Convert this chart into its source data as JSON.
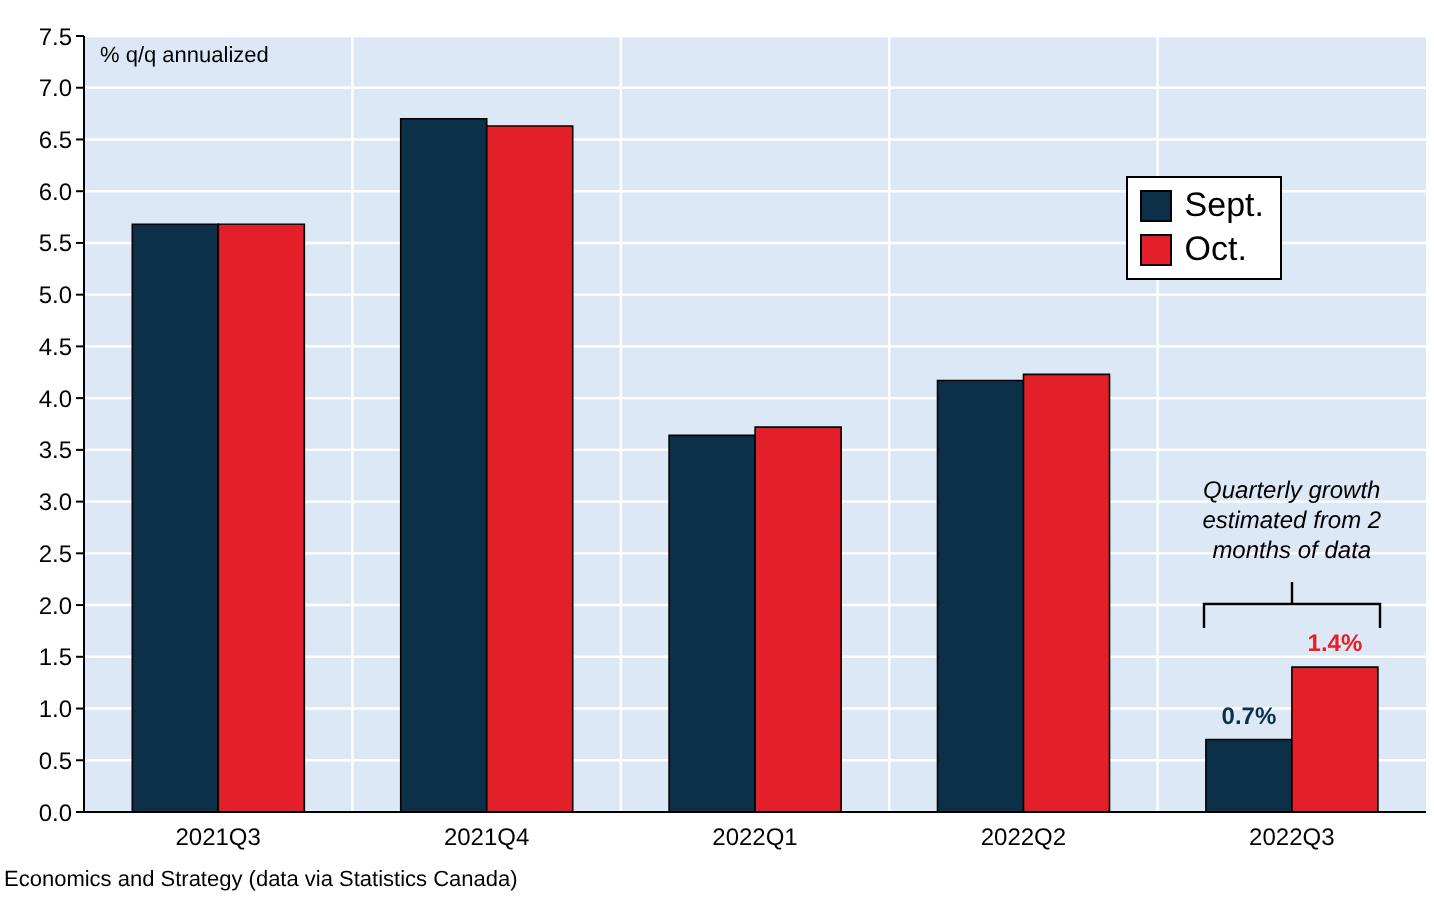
{
  "chart_data": {
    "type": "bar",
    "ylabel": "% q/q annualized",
    "categories": [
      "2021Q3",
      "2021Q4",
      "2022Q1",
      "2022Q2",
      "2022Q3"
    ],
    "series": [
      {
        "name": "Sept.",
        "color": "#0d3049",
        "values": [
          5.68,
          6.7,
          3.64,
          4.17,
          0.7
        ],
        "value_labels": [
          null,
          null,
          null,
          null,
          "0.7%"
        ]
      },
      {
        "name": "Oct.",
        "color": "#e3202a",
        "values": [
          5.68,
          6.63,
          3.72,
          4.23,
          1.4
        ],
        "value_labels": [
          null,
          null,
          null,
          null,
          "1.4%"
        ]
      }
    ],
    "ylim": [
      0,
      7.5
    ],
    "yticks": [
      {
        "value": 0,
        "label": "0.0"
      },
      {
        "value": 0.5,
        "label": "0.5"
      },
      {
        "value": 1,
        "label": "1.0"
      },
      {
        "value": 1.5,
        "label": "1.5"
      },
      {
        "value": 2,
        "label": "2.0"
      },
      {
        "value": 2.5,
        "label": "2.5"
      },
      {
        "value": 3,
        "label": "3.0"
      },
      {
        "value": 3.5,
        "label": "3.5"
      },
      {
        "value": 4,
        "label": "4.0"
      },
      {
        "value": 4.5,
        "label": "4.5"
      },
      {
        "value": 5,
        "label": "5.0"
      },
      {
        "value": 5.5,
        "label": "5.5"
      },
      {
        "value": 6,
        "label": "6.0"
      },
      {
        "value": 6.5,
        "label": "6.5"
      },
      {
        "value": 7,
        "label": "7.0"
      },
      {
        "value": 7.5,
        "label": "7.5"
      }
    ],
    "grid": true,
    "legend": "top right",
    "annotations": [
      "Quarterly growth estimated from 2 months of data",
      "Economics and Strategy (data via Statistics Canada)"
    ]
  }
}
